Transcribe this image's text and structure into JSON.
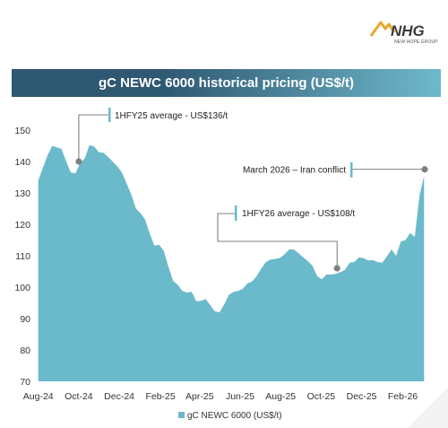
{
  "brand": {
    "logo_text": "NHG",
    "logo_subtext": "NEW HOPE GROUP",
    "colors": {
      "title_band_left": "#2f5872",
      "title_band_right": "#6fb8cb",
      "series": "#6bbacb",
      "logo_gold": "#e3a92d",
      "marker": "#808080"
    }
  },
  "chart_data": {
    "type": "area",
    "title": "gC NEWC 6000 historical pricing (US$/t)",
    "xlabel": "",
    "ylabel": "",
    "ylim": [
      70,
      150
    ],
    "yticks": [
      70,
      80,
      90,
      100,
      110,
      120,
      130,
      140,
      150
    ],
    "x_tick_labels": [
      "Aug-24",
      "Oct-24",
      "Dec-24",
      "Feb-25",
      "Apr-25",
      "Jun-25",
      "Aug-25",
      "Oct-25",
      "Dec-25",
      "Feb-26"
    ],
    "grid": false,
    "legend_position": "bottom-center",
    "series": [
      {
        "name": "gC NEWC 6000 (US$/t)",
        "points": [
          [
            "2024-08-01",
            134
          ],
          [
            "2024-08-08",
            138
          ],
          [
            "2024-08-15",
            142
          ],
          [
            "2024-08-22",
            145
          ],
          [
            "2024-08-29",
            144.5
          ],
          [
            "2024-09-05",
            144
          ],
          [
            "2024-09-12",
            140
          ],
          [
            "2024-09-19",
            136.5
          ],
          [
            "2024-09-26",
            136.2
          ],
          [
            "2024-10-03",
            139.5
          ],
          [
            "2024-10-10",
            141
          ],
          [
            "2024-10-17",
            145.2
          ],
          [
            "2024-10-24",
            144.8
          ],
          [
            "2024-10-31",
            143
          ],
          [
            "2024-11-07",
            142.8
          ],
          [
            "2024-11-14",
            141.5
          ],
          [
            "2024-11-21",
            140
          ],
          [
            "2024-11-28",
            138.5
          ],
          [
            "2024-12-05",
            136.5
          ],
          [
            "2024-12-12",
            133
          ],
          [
            "2024-12-19",
            129.5
          ],
          [
            "2024-12-26",
            125
          ],
          [
            "2025-01-02",
            123.5
          ],
          [
            "2025-01-09",
            121.5
          ],
          [
            "2025-01-16",
            117
          ],
          [
            "2025-01-23",
            113.2
          ],
          [
            "2025-01-30",
            113.5
          ],
          [
            "2025-02-06",
            111.5
          ],
          [
            "2025-02-13",
            106.5
          ],
          [
            "2025-02-20",
            102
          ],
          [
            "2025-02-27",
            100.8
          ],
          [
            "2025-03-06",
            98.8
          ],
          [
            "2025-03-13",
            98.3
          ],
          [
            "2025-03-20",
            98.5
          ],
          [
            "2025-03-27",
            95.5
          ],
          [
            "2025-04-03",
            95.6
          ],
          [
            "2025-04-10",
            96.2
          ],
          [
            "2025-04-17",
            94.3
          ],
          [
            "2025-04-24",
            92.3
          ],
          [
            "2025-05-01",
            92
          ],
          [
            "2025-05-08",
            94.5
          ],
          [
            "2025-05-15",
            97.5
          ],
          [
            "2025-05-22",
            98.5
          ],
          [
            "2025-05-29",
            98.8
          ],
          [
            "2025-06-05",
            99.5
          ],
          [
            "2025-06-12",
            101.2
          ],
          [
            "2025-06-19",
            101.8
          ],
          [
            "2025-06-26",
            103.5
          ],
          [
            "2025-07-03",
            106
          ],
          [
            "2025-07-10",
            108
          ],
          [
            "2025-07-17",
            108.8
          ],
          [
            "2025-07-24",
            109
          ],
          [
            "2025-07-31",
            109.3
          ],
          [
            "2025-08-07",
            110.5
          ],
          [
            "2025-08-14",
            112
          ],
          [
            "2025-08-21",
            112
          ],
          [
            "2025-08-28",
            110.8
          ],
          [
            "2025-09-04",
            109.5
          ],
          [
            "2025-09-11",
            108.3
          ],
          [
            "2025-09-18",
            106.8
          ],
          [
            "2025-09-25",
            103.5
          ],
          [
            "2025-10-02",
            102.5
          ],
          [
            "2025-10-09",
            104
          ],
          [
            "2025-10-16",
            104
          ],
          [
            "2025-10-23",
            104.2
          ],
          [
            "2025-10-30",
            104.8
          ],
          [
            "2025-11-06",
            105.5
          ],
          [
            "2025-11-13",
            107.8
          ],
          [
            "2025-11-20",
            108
          ],
          [
            "2025-11-27",
            109.5
          ],
          [
            "2025-12-04",
            109.2
          ],
          [
            "2025-12-11",
            108.5
          ],
          [
            "2025-12-18",
            108.6
          ],
          [
            "2025-12-25",
            108
          ],
          [
            "2026-01-01",
            107.8
          ],
          [
            "2026-01-08",
            109.8
          ],
          [
            "2026-01-15",
            112
          ],
          [
            "2026-01-22",
            110
          ],
          [
            "2026-01-29",
            114.5
          ],
          [
            "2026-02-05",
            115
          ],
          [
            "2026-02-12",
            117.2
          ],
          [
            "2026-02-19",
            116
          ],
          [
            "2026-02-26",
            129
          ],
          [
            "2026-03-05",
            135.5
          ]
        ]
      }
    ],
    "annotations": [
      {
        "text": "1HFY25 average - US$136/t",
        "date": "2024-10-01",
        "value": 140,
        "label_position": "above-right"
      },
      {
        "text": "1HFY26 average - US$108/t",
        "date": "2025-10-25",
        "value": 106,
        "label_position": "above-left"
      },
      {
        "text": "March 2026 – Iran conflict",
        "date": "2026-03-06",
        "value": 137.5,
        "label_position": "left"
      }
    ]
  }
}
